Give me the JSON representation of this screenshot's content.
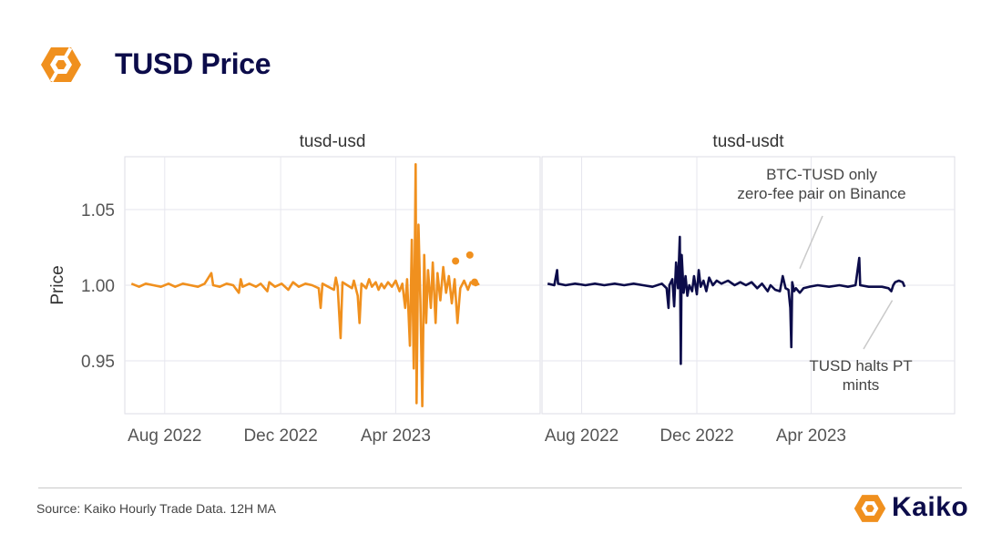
{
  "header": {
    "title": "TUSD Price",
    "logo_icon": "kaiko-hexagon-icon"
  },
  "footer": {
    "source": "Source: Kaiko Hourly Trade Data. 12H MA",
    "brand_name": "Kaiko"
  },
  "colors": {
    "accent": "#f0901e",
    "navy": "#0c0c4a",
    "grid": "#e6e6ee",
    "text": "#333333"
  },
  "chart_data": {
    "type": "line",
    "ylabel": "Price",
    "ylim": [
      0.915,
      1.085
    ],
    "yticks": [
      0.95,
      1.0,
      1.05
    ],
    "ytick_labels": [
      "0.95",
      "1.00",
      "1.05"
    ],
    "xlim": [
      "2022-06-20",
      "2023-08-31"
    ],
    "xticks": [
      "2022-08-01",
      "2022-12-01",
      "2023-04-01"
    ],
    "xtick_labels": [
      "Aug 2022",
      "Dec 2022",
      "Apr 2023"
    ],
    "grid": true,
    "panels": [
      {
        "name": "tusd-usd",
        "color": "#f0901e",
        "series": [
          {
            "x": "2022-06-27",
            "y": 1.001
          },
          {
            "x": "2022-07-05",
            "y": 0.999
          },
          {
            "x": "2022-07-12",
            "y": 1.001
          },
          {
            "x": "2022-07-20",
            "y": 1.0
          },
          {
            "x": "2022-07-28",
            "y": 0.999
          },
          {
            "x": "2022-08-05",
            "y": 1.001
          },
          {
            "x": "2022-08-12",
            "y": 0.999
          },
          {
            "x": "2022-08-20",
            "y": 1.001
          },
          {
            "x": "2022-08-28",
            "y": 1.0
          },
          {
            "x": "2022-09-05",
            "y": 0.999
          },
          {
            "x": "2022-09-12",
            "y": 1.001
          },
          {
            "x": "2022-09-19",
            "y": 1.008
          },
          {
            "x": "2022-09-21",
            "y": 1.0
          },
          {
            "x": "2022-09-28",
            "y": 0.999
          },
          {
            "x": "2022-10-05",
            "y": 1.001
          },
          {
            "x": "2022-10-12",
            "y": 1.0
          },
          {
            "x": "2022-10-18",
            "y": 0.995
          },
          {
            "x": "2022-10-20",
            "y": 1.004
          },
          {
            "x": "2022-10-22",
            "y": 0.999
          },
          {
            "x": "2022-10-29",
            "y": 1.001
          },
          {
            "x": "2022-11-05",
            "y": 0.999
          },
          {
            "x": "2022-11-10",
            "y": 1.001
          },
          {
            "x": "2022-11-17",
            "y": 0.996
          },
          {
            "x": "2022-11-19",
            "y": 1.002
          },
          {
            "x": "2022-11-25",
            "y": 0.999
          },
          {
            "x": "2022-12-02",
            "y": 1.001
          },
          {
            "x": "2022-12-09",
            "y": 0.997
          },
          {
            "x": "2022-12-14",
            "y": 1.002
          },
          {
            "x": "2022-12-20",
            "y": 0.999
          },
          {
            "x": "2022-12-27",
            "y": 1.001
          },
          {
            "x": "2023-01-03",
            "y": 1.0
          },
          {
            "x": "2023-01-10",
            "y": 0.998
          },
          {
            "x": "2023-01-12",
            "y": 0.985
          },
          {
            "x": "2023-01-14",
            "y": 1.001
          },
          {
            "x": "2023-01-20",
            "y": 0.999
          },
          {
            "x": "2023-01-26",
            "y": 0.997
          },
          {
            "x": "2023-01-28",
            "y": 1.005
          },
          {
            "x": "2023-01-30",
            "y": 0.999
          },
          {
            "x": "2023-02-02",
            "y": 0.965
          },
          {
            "x": "2023-02-04",
            "y": 1.002
          },
          {
            "x": "2023-02-09",
            "y": 1.0
          },
          {
            "x": "2023-02-14",
            "y": 0.998
          },
          {
            "x": "2023-02-16",
            "y": 1.003
          },
          {
            "x": "2023-02-20",
            "y": 0.993
          },
          {
            "x": "2023-02-22",
            "y": 0.975
          },
          {
            "x": "2023-02-24",
            "y": 1.001
          },
          {
            "x": "2023-03-01",
            "y": 0.998
          },
          {
            "x": "2023-03-04",
            "y": 1.004
          },
          {
            "x": "2023-03-07",
            "y": 0.999
          },
          {
            "x": "2023-03-11",
            "y": 1.002
          },
          {
            "x": "2023-03-14",
            "y": 0.997
          },
          {
            "x": "2023-03-17",
            "y": 1.001
          },
          {
            "x": "2023-03-20",
            "y": 0.998
          },
          {
            "x": "2023-03-24",
            "y": 1.002
          },
          {
            "x": "2023-03-28",
            "y": 0.999
          },
          {
            "x": "2023-04-01",
            "y": 1.003
          },
          {
            "x": "2023-04-05",
            "y": 0.996
          },
          {
            "x": "2023-04-08",
            "y": 1.001
          },
          {
            "x": "2023-04-11",
            "y": 0.985
          },
          {
            "x": "2023-04-13",
            "y": 1.004
          },
          {
            "x": "2023-04-16",
            "y": 0.96
          },
          {
            "x": "2023-04-18",
            "y": 1.03
          },
          {
            "x": "2023-04-20",
            "y": 0.945
          },
          {
            "x": "2023-04-22",
            "y": 1.08
          },
          {
            "x": "2023-04-23",
            "y": 0.922
          },
          {
            "x": "2023-04-25",
            "y": 1.04
          },
          {
            "x": "2023-04-27",
            "y": 0.99
          },
          {
            "x": "2023-04-29",
            "y": 0.92
          },
          {
            "x": "2023-05-01",
            "y": 1.02
          },
          {
            "x": "2023-05-03",
            "y": 0.975
          },
          {
            "x": "2023-05-05",
            "y": 1.01
          },
          {
            "x": "2023-05-08",
            "y": 0.985
          },
          {
            "x": "2023-05-10",
            "y": 1.015
          },
          {
            "x": "2023-05-13",
            "y": 0.975
          },
          {
            "x": "2023-05-15",
            "y": 1.008
          },
          {
            "x": "2023-05-18",
            "y": 0.99
          },
          {
            "x": "2023-05-21",
            "y": 1.012
          },
          {
            "x": "2023-05-24",
            "y": 0.995
          },
          {
            "x": "2023-05-27",
            "y": 1.006
          },
          {
            "x": "2023-05-30",
            "y": 0.988
          },
          {
            "x": "2023-06-02",
            "y": 1.004
          },
          {
            "x": "2023-06-05",
            "y": 0.975
          },
          {
            "x": "2023-06-08",
            "y": 0.998
          },
          {
            "x": "2023-06-12",
            "y": 1.003
          },
          {
            "x": "2023-06-16",
            "y": 0.997
          },
          {
            "x": "2023-06-19",
            "y": 1.002
          },
          {
            "x": "2023-06-24",
            "y": 1.0
          },
          {
            "x": "2023-06-28",
            "y": 1.001
          }
        ],
        "markers": [
          {
            "x": "2023-06-03",
            "y": 1.016
          },
          {
            "x": "2023-06-18",
            "y": 1.02
          },
          {
            "x": "2023-06-23",
            "y": 1.002
          }
        ]
      },
      {
        "name": "tusd-usdt",
        "color": "#0c0c4a",
        "series": [
          {
            "x": "2022-06-26",
            "y": 1.001
          },
          {
            "x": "2022-07-03",
            "y": 1.0
          },
          {
            "x": "2022-07-06",
            "y": 1.01
          },
          {
            "x": "2022-07-07",
            "y": 1.001
          },
          {
            "x": "2022-07-15",
            "y": 1.0
          },
          {
            "x": "2022-07-25",
            "y": 1.001
          },
          {
            "x": "2022-08-05",
            "y": 1.0
          },
          {
            "x": "2022-08-15",
            "y": 1.001
          },
          {
            "x": "2022-08-25",
            "y": 1.0
          },
          {
            "x": "2022-09-05",
            "y": 1.001
          },
          {
            "x": "2022-09-15",
            "y": 1.0
          },
          {
            "x": "2022-09-25",
            "y": 1.001
          },
          {
            "x": "2022-10-05",
            "y": 1.0
          },
          {
            "x": "2022-10-15",
            "y": 0.999
          },
          {
            "x": "2022-10-25",
            "y": 1.001
          },
          {
            "x": "2022-10-30",
            "y": 0.998
          },
          {
            "x": "2022-11-01",
            "y": 0.985
          },
          {
            "x": "2022-11-02",
            "y": 1.0
          },
          {
            "x": "2022-11-05",
            "y": 1.004
          },
          {
            "x": "2022-11-07",
            "y": 0.986
          },
          {
            "x": "2022-11-09",
            "y": 1.015
          },
          {
            "x": "2022-11-11",
            "y": 0.998
          },
          {
            "x": "2022-11-13",
            "y": 1.032
          },
          {
            "x": "2022-11-14",
            "y": 0.948
          },
          {
            "x": "2022-11-15",
            "y": 1.02
          },
          {
            "x": "2022-11-17",
            "y": 0.995
          },
          {
            "x": "2022-11-19",
            "y": 1.006
          },
          {
            "x": "2022-11-21",
            "y": 0.993
          },
          {
            "x": "2022-11-23",
            "y": 1.0
          },
          {
            "x": "2022-11-26",
            "y": 0.996
          },
          {
            "x": "2022-11-28",
            "y": 1.006
          },
          {
            "x": "2022-12-01",
            "y": 0.994
          },
          {
            "x": "2022-12-03",
            "y": 1.01
          },
          {
            "x": "2022-12-05",
            "y": 0.999
          },
          {
            "x": "2022-12-08",
            "y": 1.003
          },
          {
            "x": "2022-12-11",
            "y": 0.996
          },
          {
            "x": "2022-12-14",
            "y": 1.005
          },
          {
            "x": "2022-12-18",
            "y": 1.0
          },
          {
            "x": "2022-12-22",
            "y": 1.003
          },
          {
            "x": "2022-12-27",
            "y": 1.001
          },
          {
            "x": "2023-01-03",
            "y": 1.003
          },
          {
            "x": "2023-01-10",
            "y": 1.0
          },
          {
            "x": "2023-01-16",
            "y": 1.002
          },
          {
            "x": "2023-01-22",
            "y": 1.0
          },
          {
            "x": "2023-01-28",
            "y": 1.002
          },
          {
            "x": "2023-02-03",
            "y": 0.998
          },
          {
            "x": "2023-02-08",
            "y": 1.001
          },
          {
            "x": "2023-02-14",
            "y": 0.996
          },
          {
            "x": "2023-02-17",
            "y": 1.0
          },
          {
            "x": "2023-02-22",
            "y": 0.997
          },
          {
            "x": "2023-02-27",
            "y": 0.996
          },
          {
            "x": "2023-03-02",
            "y": 1.006
          },
          {
            "x": "2023-03-05",
            "y": 0.998
          },
          {
            "x": "2023-03-08",
            "y": 0.997
          },
          {
            "x": "2023-03-10",
            "y": 0.985
          },
          {
            "x": "2023-03-11",
            "y": 0.959
          },
          {
            "x": "2023-03-12",
            "y": 1.002
          },
          {
            "x": "2023-03-14",
            "y": 0.996
          },
          {
            "x": "2023-03-16",
            "y": 0.998
          },
          {
            "x": "2023-03-20",
            "y": 0.995
          },
          {
            "x": "2023-03-24",
            "y": 0.998
          },
          {
            "x": "2023-03-30",
            "y": 0.999
          },
          {
            "x": "2023-04-08",
            "y": 1.0
          },
          {
            "x": "2023-04-20",
            "y": 0.999
          },
          {
            "x": "2023-05-01",
            "y": 1.0
          },
          {
            "x": "2023-05-10",
            "y": 0.999
          },
          {
            "x": "2023-05-18",
            "y": 1.0
          },
          {
            "x": "2023-05-22",
            "y": 1.018
          },
          {
            "x": "2023-05-23",
            "y": 1.0
          },
          {
            "x": "2023-06-01",
            "y": 0.999
          },
          {
            "x": "2023-06-15",
            "y": 0.999
          },
          {
            "x": "2023-06-22",
            "y": 0.998
          },
          {
            "x": "2023-06-25",
            "y": 0.996
          },
          {
            "x": "2023-06-27",
            "y": 1.0
          },
          {
            "x": "2023-06-29",
            "y": 1.002
          },
          {
            "x": "2023-07-03",
            "y": 1.003
          },
          {
            "x": "2023-07-07",
            "y": 1.002
          },
          {
            "x": "2023-07-09",
            "y": 0.999
          }
        ],
        "annotations": [
          {
            "lines": [
              "BTC-TUSD only",
              "zero-fee pair on Binance"
            ],
            "x": "2023-03-20",
            "y": 1.011
          },
          {
            "lines": [
              "TUSD halts PT",
              "mints"
            ],
            "x": "2023-06-26",
            "y": 0.99
          }
        ]
      }
    ]
  }
}
